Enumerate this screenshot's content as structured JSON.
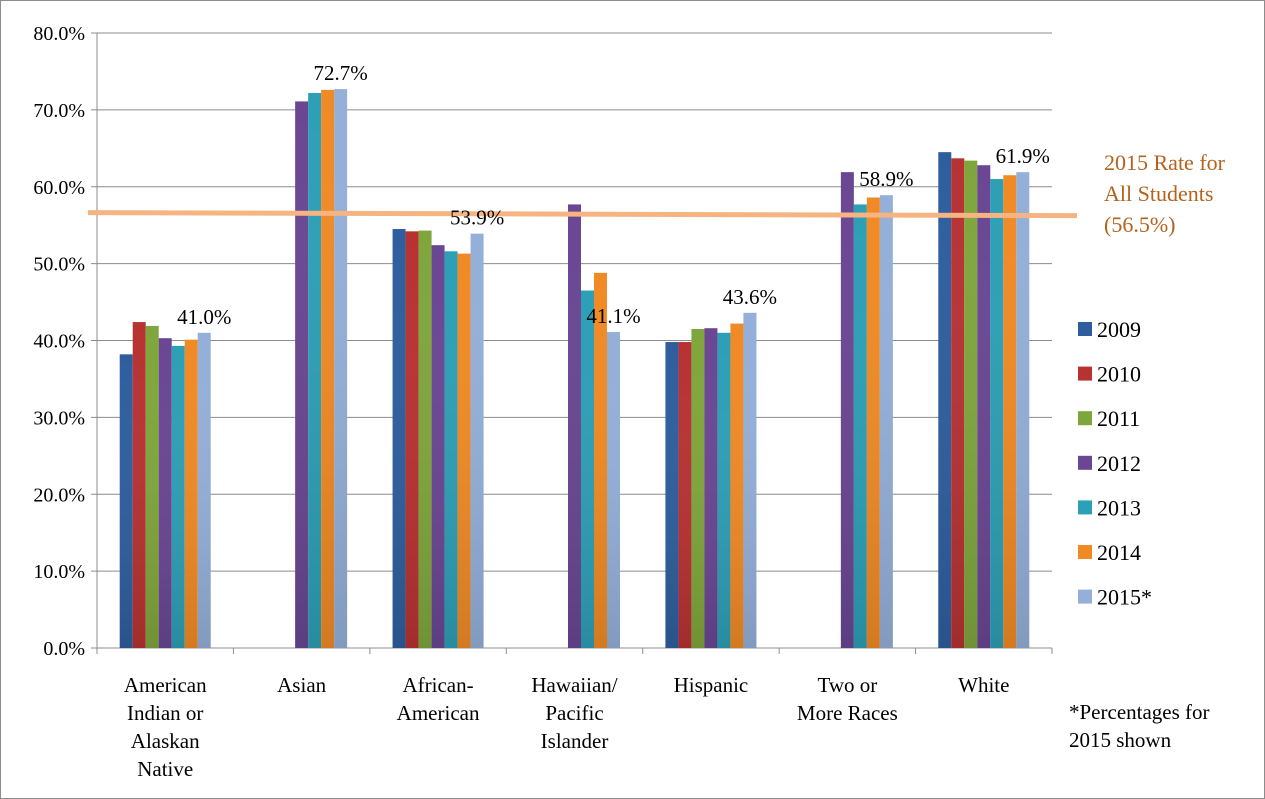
{
  "chart_data": {
    "type": "bar",
    "title": "",
    "xlabel": "",
    "ylabel": "",
    "ylim": [
      0,
      80
    ],
    "y_ticks": [
      "0.0%",
      "10.0%",
      "20.0%",
      "30.0%",
      "40.0%",
      "50.0%",
      "60.0%",
      "70.0%",
      "80.0%"
    ],
    "grid": true,
    "legend_position": "right",
    "categories": [
      [
        "American",
        "Indian or",
        "Alaskan",
        "Native"
      ],
      [
        "Asian"
      ],
      [
        "African-",
        "American"
      ],
      [
        "Hawaiian/",
        "Pacific",
        "Islander"
      ],
      [
        "Hispanic"
      ],
      [
        "Two or",
        "More Races"
      ],
      [
        "White"
      ]
    ],
    "series": [
      {
        "name": "2009",
        "color": "#2e5e9e",
        "values": [
          38.2,
          null,
          54.5,
          null,
          39.8,
          null,
          64.5
        ]
      },
      {
        "name": "2010",
        "color": "#b83232",
        "values": [
          42.4,
          null,
          54.2,
          null,
          39.8,
          null,
          63.7
        ]
      },
      {
        "name": "2011",
        "color": "#7fa63c",
        "values": [
          41.9,
          null,
          54.3,
          null,
          41.5,
          null,
          63.4
        ]
      },
      {
        "name": "2012",
        "color": "#6a4693",
        "values": [
          40.3,
          71.1,
          52.4,
          57.7,
          41.6,
          61.9,
          62.8
        ]
      },
      {
        "name": "2013",
        "color": "#2d9fb6",
        "values": [
          39.3,
          72.2,
          51.6,
          46.5,
          41.0,
          57.7,
          61.0
        ]
      },
      {
        "name": "2014",
        "color": "#f08a25",
        "values": [
          40.1,
          72.6,
          51.3,
          48.8,
          42.2,
          58.6,
          61.5
        ]
      },
      {
        "name": "2015*",
        "color": "#94afd8",
        "values": [
          41.0,
          72.7,
          53.9,
          41.1,
          43.6,
          58.9,
          61.9
        ]
      }
    ],
    "data_labels": [
      {
        "category_index": 0,
        "text": "41.0%"
      },
      {
        "category_index": 1,
        "text": "72.7%"
      },
      {
        "category_index": 2,
        "text": "53.9%"
      },
      {
        "category_index": 3,
        "text": "41.1%"
      },
      {
        "category_index": 4,
        "text": "43.6%"
      },
      {
        "category_index": 5,
        "text": "58.9%"
      },
      {
        "category_index": 6,
        "text": "61.9%"
      }
    ],
    "reference_line": {
      "value": 56.5,
      "color": "#f6b482",
      "label_lines": [
        "2015 Rate for",
        "All Students",
        "(56.5%)"
      ],
      "label_color": "#b5621c"
    },
    "footnote_lines": [
      "*Percentages for",
      "2015 shown"
    ]
  }
}
